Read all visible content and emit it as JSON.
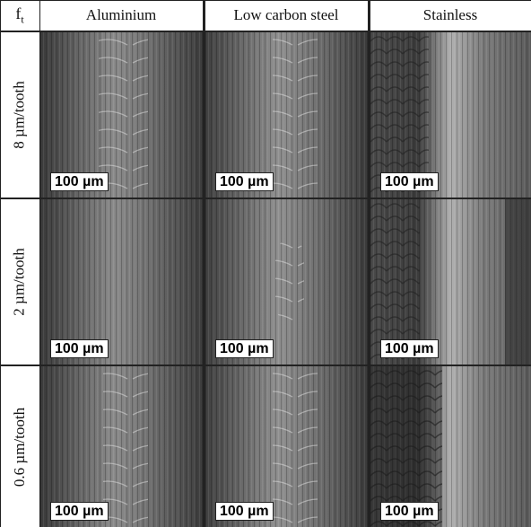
{
  "header": {
    "corner_label": "f",
    "corner_sub": "t",
    "columns": [
      "Aluminium",
      "Low carbon steel",
      "Stainless"
    ]
  },
  "rows": [
    {
      "label": "8 µm/tooth",
      "scale_bars": [
        "100 µm",
        "100 µm",
        "100 µm"
      ]
    },
    {
      "label": "2 µm/tooth",
      "scale_bars": [
        "100 µm",
        "100 µm",
        "100 µm"
      ]
    },
    {
      "label": "0.6 µm/tooth",
      "scale_bars": [
        "100 µm",
        "100 µm",
        "100 µm"
      ]
    }
  ]
}
